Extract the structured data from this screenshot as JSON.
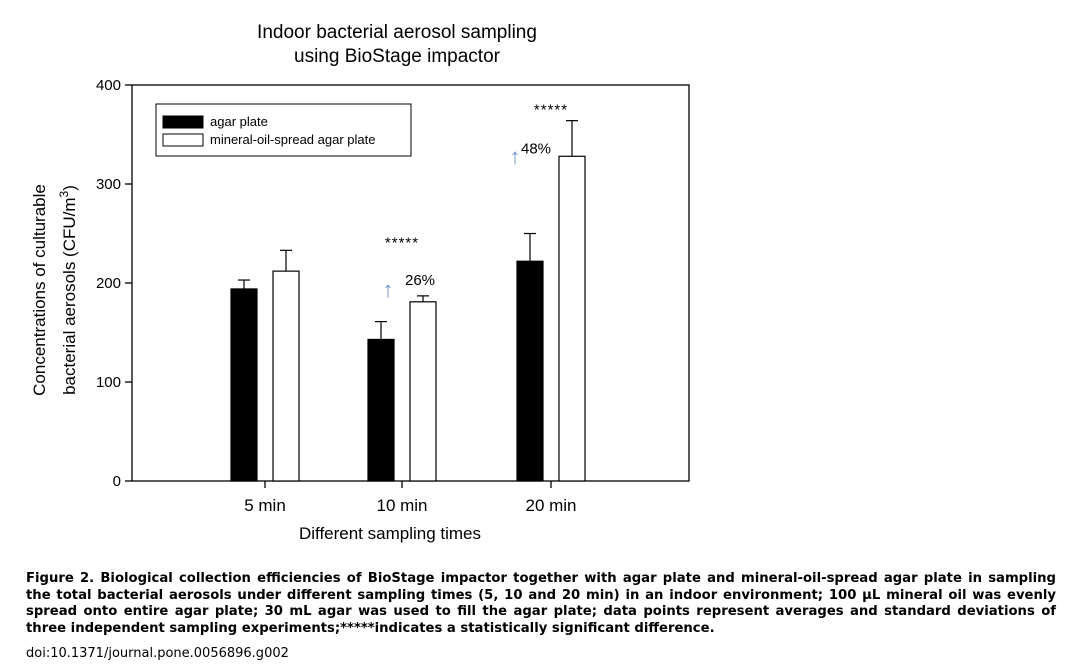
{
  "chart_data": {
    "type": "bar",
    "title_lines": [
      "Indoor bacterial aerosol sampling",
      "using BioStage impactor"
    ],
    "xlabel": "Different sampling times",
    "ylabel_line1": "Concentrations of culturable",
    "ylabel_line2_main": "bacterial aerosols (CFU/m",
    "ylabel_line2_sup": "3",
    "ylabel_line2_end": ")",
    "categories": [
      "5 min",
      "10 min",
      "20 min"
    ],
    "ylim": [
      0,
      400
    ],
    "yticks": [
      "0",
      "100",
      "200",
      "300",
      "400"
    ],
    "series": [
      {
        "name": "agar plate",
        "color": "#000000",
        "values": [
          194,
          143,
          222
        ],
        "errors": [
          9,
          18,
          28
        ]
      },
      {
        "name": "mineral-oil-spread agar plate",
        "color": "#ffffff",
        "values": [
          212,
          181,
          328
        ],
        "errors": [
          21,
          6,
          36
        ]
      }
    ],
    "legend_position": "top-left",
    "grid": false,
    "annotations": [
      {
        "category": 1,
        "stars": "*****",
        "arrow": "↑",
        "percent": "26%"
      },
      {
        "category": 2,
        "stars": "*****",
        "arrow": "↑",
        "percent": "48%"
      }
    ],
    "arrow_color": "#6e96c8"
  },
  "caption": {
    "text": "Figure 2. Biological collection efficiencies of BioStage impactor together with agar plate and mineral-oil-spread agar plate in sampling the total bacterial aerosols under different sampling times (5, 10 and 20 min) in an indoor environment; 100 µL mineral oil was evenly spread onto entire agar plate; 30 mL agar was used to fill the agar plate; data points represent averages and standard deviations of three independent sampling experiments;*****indicates a statistically significant difference.",
    "doi": "doi:10.1371/journal.pone.0056896.g002"
  }
}
